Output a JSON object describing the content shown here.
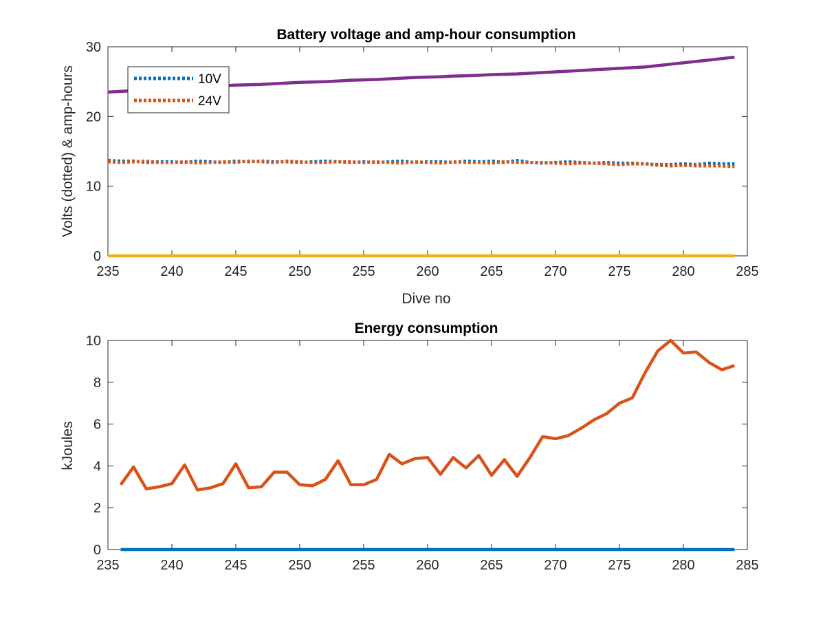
{
  "chart_data": [
    {
      "type": "line",
      "title": "Battery voltage and amp-hour consumption",
      "xlabel": "Dive no",
      "ylabel": "Volts (dotted) & amp-hours",
      "xlim": [
        235,
        285
      ],
      "ylim": [
        0,
        30
      ],
      "xticks": [
        "235",
        "240",
        "245",
        "250",
        "255",
        "260",
        "265",
        "270",
        "275",
        "280",
        "285"
      ],
      "yticks": [
        "0",
        "10",
        "20",
        "30"
      ],
      "grid": false,
      "legend_position": "top-left",
      "x": [
        235,
        236,
        237,
        238,
        239,
        240,
        241,
        242,
        243,
        244,
        245,
        246,
        247,
        248,
        249,
        250,
        251,
        252,
        253,
        254,
        255,
        256,
        257,
        258,
        259,
        260,
        261,
        262,
        263,
        264,
        265,
        266,
        267,
        268,
        269,
        270,
        271,
        272,
        273,
        274,
        275,
        276,
        277,
        278,
        279,
        280,
        281,
        282,
        283,
        284
      ],
      "series": [
        {
          "name": "10V",
          "style": "dotted",
          "color": "#0072BD",
          "values": [
            13.7,
            13.6,
            13.6,
            13.4,
            13.5,
            13.5,
            13.4,
            13.6,
            13.5,
            13.4,
            13.6,
            13.5,
            13.6,
            13.5,
            13.5,
            13.4,
            13.5,
            13.6,
            13.5,
            13.4,
            13.5,
            13.4,
            13.5,
            13.6,
            13.4,
            13.5,
            13.5,
            13.4,
            13.6,
            13.5,
            13.6,
            13.4,
            13.7,
            13.4,
            13.3,
            13.4,
            13.5,
            13.4,
            13.3,
            13.4,
            13.3,
            13.3,
            13.2,
            13.1,
            13.1,
            13.2,
            13.1,
            13.3,
            13.2,
            13.2
          ]
        },
        {
          "name": "24V",
          "style": "dotted",
          "color": "#D95319",
          "values": [
            13.5,
            13.4,
            13.5,
            13.6,
            13.4,
            13.4,
            13.5,
            13.3,
            13.4,
            13.5,
            13.4,
            13.6,
            13.5,
            13.4,
            13.6,
            13.5,
            13.4,
            13.4,
            13.5,
            13.5,
            13.4,
            13.5,
            13.4,
            13.3,
            13.5,
            13.4,
            13.3,
            13.5,
            13.4,
            13.4,
            13.3,
            13.5,
            13.4,
            13.4,
            13.4,
            13.3,
            13.2,
            13.3,
            13.3,
            13.2,
            13.1,
            13.2,
            13.2,
            13.0,
            12.9,
            13.0,
            12.9,
            12.9,
            12.9,
            12.8
          ]
        },
        {
          "name": "",
          "style": "solid",
          "color": "#7E2F8E",
          "values": [
            23.5,
            23.6,
            23.7,
            23.8,
            23.9,
            24.0,
            24.1,
            24.2,
            24.3,
            24.4,
            24.5,
            24.55,
            24.6,
            24.7,
            24.8,
            24.9,
            24.95,
            25.0,
            25.1,
            25.2,
            25.25,
            25.3,
            25.4,
            25.5,
            25.6,
            25.65,
            25.7,
            25.8,
            25.85,
            25.9,
            26.0,
            26.05,
            26.1,
            26.2,
            26.3,
            26.4,
            26.5,
            26.6,
            26.7,
            26.8,
            26.9,
            27.0,
            27.1,
            27.3,
            27.5,
            27.7,
            27.9,
            28.1,
            28.3,
            28.5
          ]
        },
        {
          "name": "",
          "style": "solid",
          "color": "#EDB120",
          "values": [
            0,
            0,
            0,
            0,
            0,
            0,
            0,
            0,
            0,
            0,
            0,
            0,
            0,
            0,
            0,
            0,
            0,
            0,
            0,
            0,
            0,
            0,
            0,
            0,
            0,
            0,
            0,
            0,
            0,
            0,
            0,
            0,
            0,
            0,
            0,
            0,
            0,
            0,
            0,
            0,
            0,
            0,
            0,
            0,
            0,
            0,
            0,
            0,
            0,
            0
          ]
        }
      ]
    },
    {
      "type": "line",
      "title": "Energy consumption",
      "xlabel": "",
      "ylabel": "kJoules",
      "xlim": [
        235,
        285
      ],
      "ylim": [
        0,
        10
      ],
      "xticks": [
        "235",
        "240",
        "245",
        "250",
        "255",
        "260",
        "265",
        "270",
        "275",
        "280",
        "285"
      ],
      "yticks": [
        "0",
        "2",
        "4",
        "6",
        "8",
        "10"
      ],
      "grid": false,
      "x": [
        236,
        237,
        238,
        239,
        240,
        241,
        242,
        243,
        244,
        245,
        246,
        247,
        248,
        249,
        250,
        251,
        252,
        253,
        254,
        255,
        256,
        257,
        258,
        259,
        260,
        261,
        262,
        263,
        264,
        265,
        266,
        267,
        268,
        269,
        270,
        271,
        272,
        273,
        274,
        275,
        276,
        277,
        278,
        279,
        280,
        281,
        282,
        283,
        284
      ],
      "series": [
        {
          "name": "",
          "style": "solid",
          "color": "#D95319",
          "values": [
            3.1,
            3.95,
            2.9,
            3.0,
            3.15,
            4.05,
            2.85,
            2.95,
            3.15,
            4.1,
            2.95,
            3.0,
            3.7,
            3.7,
            3.1,
            3.05,
            3.35,
            4.25,
            3.1,
            3.1,
            3.35,
            4.55,
            4.1,
            4.35,
            4.4,
            3.6,
            4.4,
            3.9,
            4.5,
            3.55,
            4.3,
            3.5,
            4.4,
            5.4,
            5.3,
            5.45,
            5.8,
            6.2,
            6.5,
            7.0,
            7.25,
            8.45,
            9.5,
            10.0,
            9.4,
            9.45,
            8.95,
            8.6,
            8.8
          ]
        },
        {
          "name": "",
          "style": "solid",
          "color": "#0072BD",
          "values": [
            0,
            0,
            0,
            0,
            0,
            0,
            0,
            0,
            0,
            0,
            0,
            0,
            0,
            0,
            0,
            0,
            0,
            0,
            0,
            0,
            0,
            0,
            0,
            0,
            0,
            0,
            0,
            0,
            0,
            0,
            0,
            0,
            0,
            0,
            0,
            0,
            0,
            0,
            0,
            0,
            0,
            0,
            0,
            0,
            0,
            0,
            0,
            0,
            0
          ]
        }
      ]
    }
  ]
}
